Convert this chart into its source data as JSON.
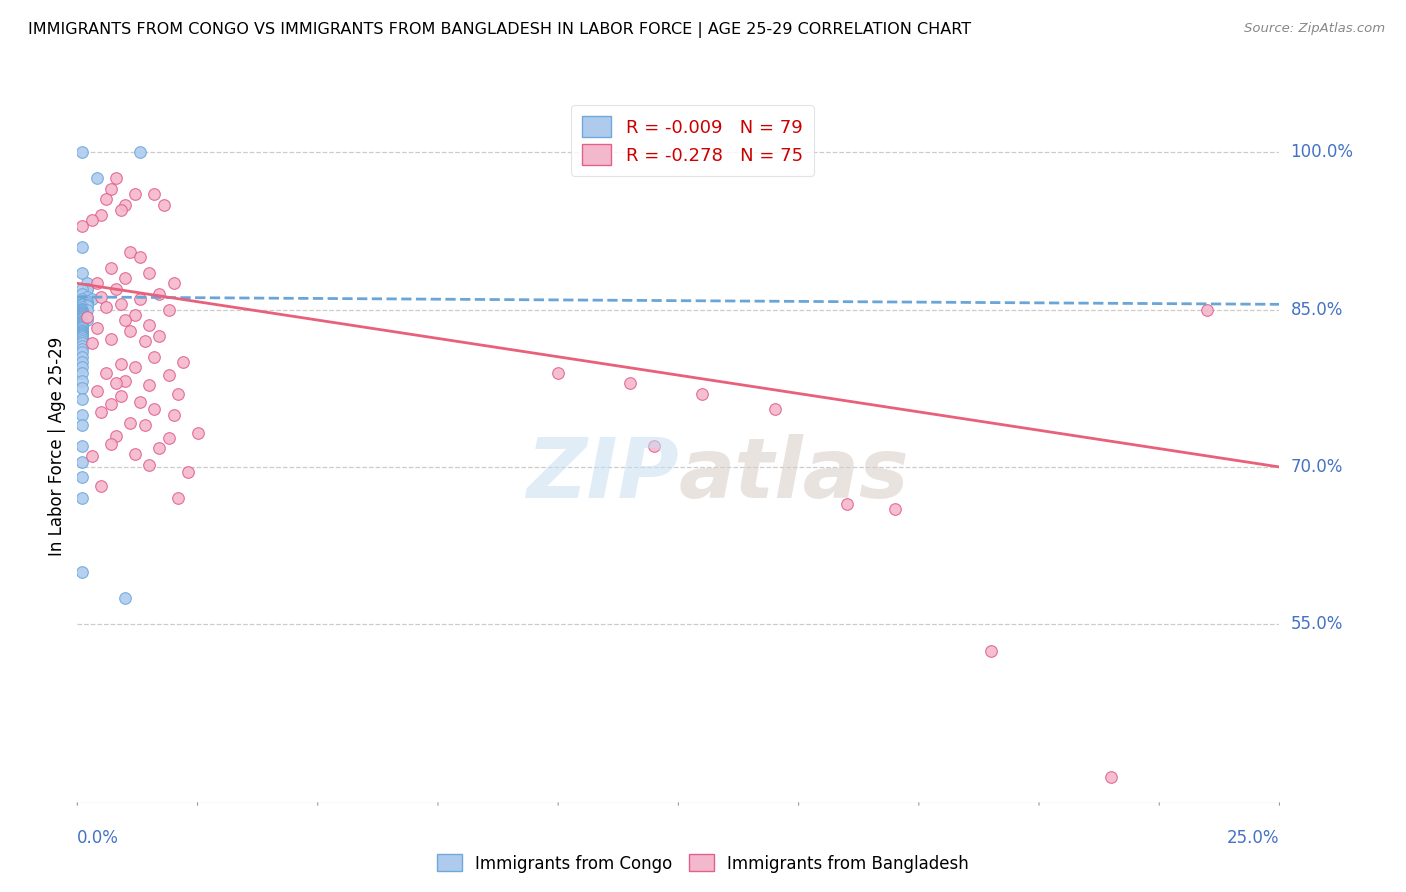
{
  "title": "IMMIGRANTS FROM CONGO VS IMMIGRANTS FROM BANGLADESH IN LABOR FORCE | AGE 25-29 CORRELATION CHART",
  "source": "Source: ZipAtlas.com",
  "ylabel": "In Labor Force | Age 25-29",
  "ytick_vals": [
    0.55,
    0.7,
    0.85,
    1.0
  ],
  "ytick_labels": [
    "55.0%",
    "70.0%",
    "85.0%",
    "100.0%"
  ],
  "xmin": 0.0,
  "xmax": 0.25,
  "ymin": 0.38,
  "ymax": 1.06,
  "congo_color": "#aecbee",
  "congo_color_dark": "#6fa8dc",
  "bangladesh_color": "#f4b8cc",
  "bangladesh_color_dark": "#e06090",
  "trend_congo_color": "#6aa5d8",
  "trend_bangladesh_color": "#e8607a",
  "congo_R": -0.009,
  "congo_N": 79,
  "bangladesh_R": -0.278,
  "bangladesh_N": 75,
  "congo_scatter_x": [
    0.001,
    0.004,
    0.013,
    0.001,
    0.001,
    0.002,
    0.002,
    0.002,
    0.001,
    0.001,
    0.002,
    0.003,
    0.001,
    0.001,
    0.002,
    0.002,
    0.001,
    0.001,
    0.001,
    0.002,
    0.002,
    0.001,
    0.001,
    0.001,
    0.001,
    0.002,
    0.001,
    0.001,
    0.001,
    0.001,
    0.001,
    0.001,
    0.001,
    0.001,
    0.001,
    0.001,
    0.001,
    0.001,
    0.001,
    0.001,
    0.002,
    0.001,
    0.001,
    0.001,
    0.001,
    0.001,
    0.001,
    0.001,
    0.001,
    0.001,
    0.001,
    0.001,
    0.001,
    0.001,
    0.001,
    0.001,
    0.001,
    0.001,
    0.001,
    0.001,
    0.001,
    0.001,
    0.001,
    0.001,
    0.001,
    0.001,
    0.001,
    0.001,
    0.001,
    0.001,
    0.001,
    0.001,
    0.001,
    0.001,
    0.001,
    0.001,
    0.001,
    0.001,
    0.01
  ],
  "congo_scatter_y": [
    1.0,
    0.975,
    1.0,
    0.91,
    0.885,
    0.875,
    0.87,
    0.87,
    0.87,
    0.865,
    0.862,
    0.86,
    0.86,
    0.858,
    0.858,
    0.856,
    0.855,
    0.855,
    0.854,
    0.854,
    0.853,
    0.852,
    0.851,
    0.851,
    0.85,
    0.85,
    0.85,
    0.849,
    0.848,
    0.847,
    0.847,
    0.846,
    0.845,
    0.845,
    0.844,
    0.843,
    0.843,
    0.842,
    0.841,
    0.841,
    0.84,
    0.839,
    0.839,
    0.838,
    0.837,
    0.836,
    0.835,
    0.834,
    0.833,
    0.832,
    0.831,
    0.83,
    0.829,
    0.828,
    0.827,
    0.826,
    0.825,
    0.824,
    0.822,
    0.82,
    0.818,
    0.815,
    0.812,
    0.81,
    0.805,
    0.8,
    0.795,
    0.79,
    0.782,
    0.775,
    0.765,
    0.75,
    0.74,
    0.72,
    0.705,
    0.69,
    0.67,
    0.6,
    0.575
  ],
  "bangladesh_scatter_x": [
    0.001,
    0.008,
    0.007,
    0.012,
    0.016,
    0.006,
    0.01,
    0.018,
    0.009,
    0.005,
    0.003,
    0.011,
    0.013,
    0.007,
    0.015,
    0.01,
    0.004,
    0.02,
    0.008,
    0.017,
    0.005,
    0.013,
    0.009,
    0.006,
    0.019,
    0.012,
    0.002,
    0.01,
    0.015,
    0.004,
    0.011,
    0.017,
    0.007,
    0.014,
    0.003,
    0.016,
    0.022,
    0.009,
    0.012,
    0.006,
    0.019,
    0.01,
    0.008,
    0.015,
    0.004,
    0.021,
    0.009,
    0.013,
    0.007,
    0.016,
    0.005,
    0.02,
    0.011,
    0.014,
    0.025,
    0.008,
    0.019,
    0.007,
    0.017,
    0.012,
    0.003,
    0.015,
    0.023,
    0.005,
    0.021,
    0.1,
    0.115,
    0.13,
    0.145,
    0.12,
    0.16,
    0.17,
    0.19,
    0.215,
    0.235
  ],
  "bangladesh_scatter_y": [
    0.93,
    0.975,
    0.965,
    0.96,
    0.96,
    0.955,
    0.95,
    0.95,
    0.945,
    0.94,
    0.935,
    0.905,
    0.9,
    0.89,
    0.885,
    0.88,
    0.875,
    0.875,
    0.87,
    0.865,
    0.862,
    0.86,
    0.855,
    0.852,
    0.85,
    0.845,
    0.843,
    0.84,
    0.835,
    0.832,
    0.83,
    0.825,
    0.822,
    0.82,
    0.818,
    0.805,
    0.8,
    0.798,
    0.795,
    0.79,
    0.788,
    0.782,
    0.78,
    0.778,
    0.772,
    0.77,
    0.768,
    0.762,
    0.76,
    0.755,
    0.752,
    0.75,
    0.742,
    0.74,
    0.732,
    0.73,
    0.728,
    0.722,
    0.718,
    0.712,
    0.71,
    0.702,
    0.695,
    0.682,
    0.67,
    0.79,
    0.78,
    0.77,
    0.755,
    0.72,
    0.665,
    0.66,
    0.525,
    0.405,
    0.85
  ],
  "congo_trend_x0": 0.0,
  "congo_trend_x1": 0.25,
  "congo_trend_y0": 0.862,
  "congo_trend_y1": 0.855,
  "bangladesh_trend_x0": 0.0,
  "bangladesh_trend_x1": 0.25,
  "bangladesh_trend_y0": 0.875,
  "bangladesh_trend_y1": 0.7
}
